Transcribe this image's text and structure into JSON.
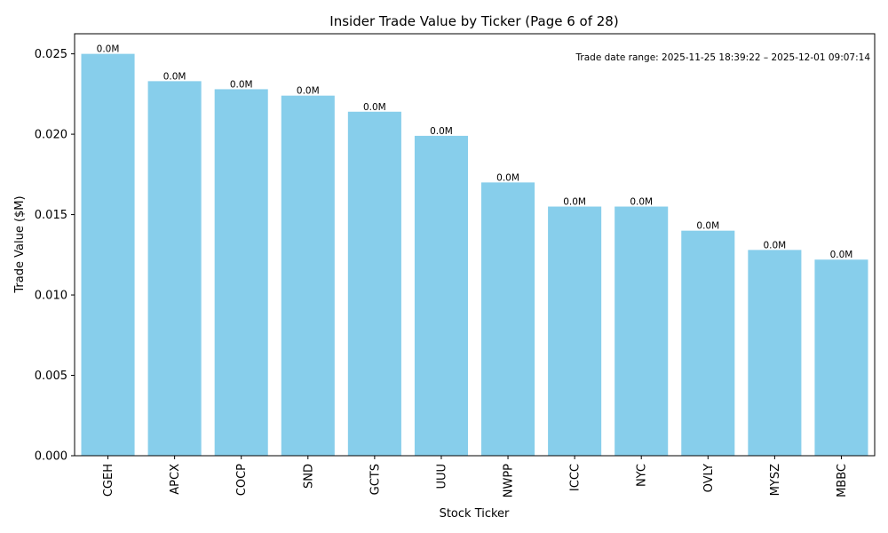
{
  "chart_data": {
    "type": "bar",
    "title": "Insider Trade Value by Ticker (Page 6 of 28)",
    "xlabel": "Stock Ticker",
    "ylabel": "Trade Value ($M)",
    "categories": [
      "CGEH",
      "APCX",
      "COCP",
      "SND",
      "GCTS",
      "UUU",
      "NWPP",
      "ICCC",
      "NYC",
      "OVLY",
      "MYSZ",
      "MBBC"
    ],
    "values": [
      0.025,
      0.0233,
      0.0228,
      0.0224,
      0.0214,
      0.0199,
      0.017,
      0.0155,
      0.0155,
      0.014,
      0.0128,
      0.0122
    ],
    "data_labels": [
      "0.0M",
      "0.0M",
      "0.0M",
      "0.0M",
      "0.0M",
      "0.0M",
      "0.0M",
      "0.0M",
      "0.0M",
      "0.0M",
      "0.0M",
      "0.0M"
    ],
    "ylim": [
      0,
      0.02625
    ],
    "yticks": [
      0.0,
      0.005,
      0.01,
      0.015,
      0.02,
      0.025
    ],
    "ytick_labels": [
      "0.000",
      "0.005",
      "0.010",
      "0.015",
      "0.020",
      "0.025"
    ],
    "annotation": "Trade date range: 2025-11-25 18:39:22 – 2025-12-01 09:07:14",
    "grid": false,
    "bar_color": "#87ceeb"
  }
}
